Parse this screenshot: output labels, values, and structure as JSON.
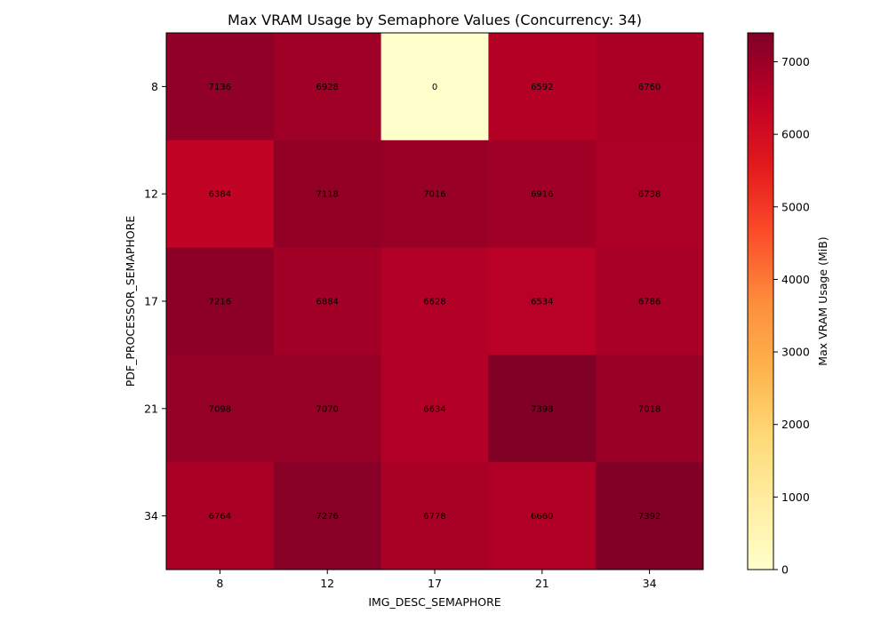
{
  "chart_data": {
    "type": "heatmap",
    "title": "Max VRAM Usage by Semaphore Values (Concurrency: 34)",
    "xlabel": "IMG_DESC_SEMAPHORE",
    "ylabel": "PDF_PROCESSOR_SEMAPHORE",
    "x_categories": [
      "8",
      "12",
      "17",
      "21",
      "34"
    ],
    "y_categories": [
      "8",
      "12",
      "17",
      "21",
      "34"
    ],
    "values": [
      [
        7136,
        6928,
        0,
        6592,
        6760
      ],
      [
        6384,
        7118,
        7016,
        6916,
        6738
      ],
      [
        7216,
        6884,
        6628,
        6534,
        6786
      ],
      [
        7098,
        7070,
        6634,
        7398,
        7018
      ],
      [
        6764,
        7276,
        6778,
        6660,
        7392
      ]
    ],
    "colorbar": {
      "label": "Max VRAM Usage (MiB)",
      "min": 0,
      "max": 7398,
      "ticks": [
        0,
        1000,
        2000,
        3000,
        4000,
        5000,
        6000,
        7000
      ],
      "colormap": "YlOrRd"
    },
    "grid": false
  }
}
